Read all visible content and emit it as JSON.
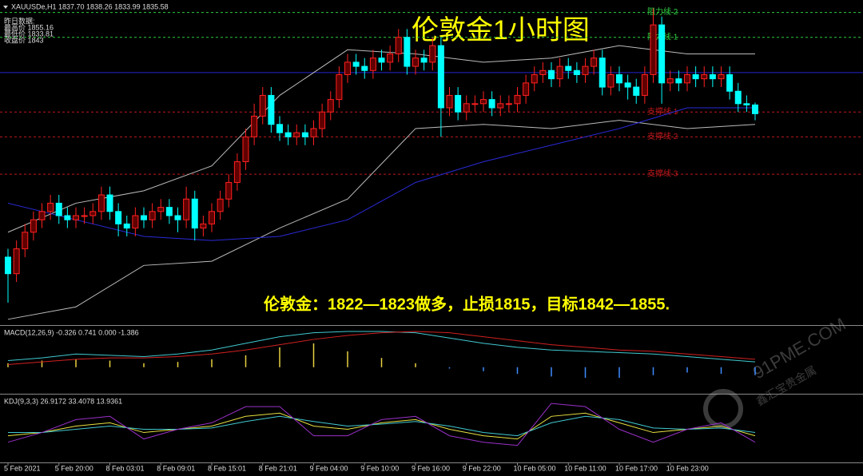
{
  "chart_data": [
    {
      "type": "candlestick",
      "title": "伦敦金1小时图",
      "header": "XAUUSDe,H1  1837.70 1838.26 1833.99 1835.58",
      "info": [
        "昨日数据:",
        "最高价 1855.16",
        "最低价 1833.81",
        "收盘价 1843"
      ],
      "annotation": "伦敦金：1822—1823做多，止损1815，目标1842—1855.",
      "watermark": [
        "91PME.COM",
        "鑫汇宝贵金属"
      ],
      "ylim": [
        1785,
        1863
      ],
      "up_color": "#ff2020",
      "up_fill": "#600000",
      "down_color": "#00ffff",
      "categories": [
        "5 Feb 2021",
        null,
        null,
        null,
        null,
        null,
        "5 Feb 20:00",
        null,
        null,
        null,
        null,
        null,
        "8 Feb 03:01",
        null,
        null,
        null,
        null,
        null,
        "8 Feb 09:01",
        null,
        null,
        null,
        null,
        null,
        "8 Feb 15:01",
        null,
        null,
        null,
        null,
        null,
        "8 Feb 21:01",
        null,
        null,
        null,
        null,
        null,
        "9 Feb 04:00",
        null,
        null,
        null,
        null,
        null,
        "9 Feb 10:00",
        null,
        null,
        null,
        null,
        null,
        "9 Feb 16:00",
        null,
        null,
        null,
        null,
        null,
        "9 Feb 22:00",
        null,
        null,
        null,
        null,
        null,
        "10 Feb 05:00",
        null,
        null,
        null,
        null,
        null,
        "10 Feb 11:00",
        null,
        null,
        null,
        null,
        null,
        "10 Feb 17:00",
        null,
        null,
        null,
        null,
        null,
        "10 Feb 23:00",
        null,
        null,
        null,
        null,
        null,
        null,
        null,
        null,
        null,
        null
      ],
      "open": [
        1801,
        1797,
        1803,
        1807,
        1810,
        1812,
        1814,
        1811,
        1810,
        1811,
        1811,
        1812,
        1816,
        1812,
        1809,
        1808,
        1811,
        1810,
        1812,
        1813,
        1811,
        1810,
        1815,
        1808,
        1809,
        1812,
        1815,
        1819,
        1824,
        1830,
        1835,
        1840,
        1833,
        1831,
        1830,
        1831,
        1830,
        1832,
        1836,
        1839,
        1845,
        1848,
        1847,
        1846,
        1849,
        1848,
        1850,
        1854,
        1847,
        1849,
        1848,
        1852,
        1837,
        1840,
        1836,
        1838,
        1838,
        1839,
        1837,
        1838,
        1838,
        1840,
        1843,
        1845,
        1846,
        1844,
        1847,
        1846,
        1845,
        1847,
        1849,
        1842,
        1845,
        1843,
        1842,
        1840,
        1845,
        1857,
        1843,
        1844,
        1843,
        1845,
        1844,
        1845,
        1844,
        1845,
        1841,
        1838,
        1837.7
      ],
      "high": [
        1803,
        1805,
        1809,
        1812,
        1814,
        1816,
        1816,
        1813,
        1813,
        1813,
        1814,
        1818,
        1818,
        1814,
        1811,
        1813,
        1813,
        1814,
        1815,
        1815,
        1813,
        1818,
        1817,
        1811,
        1814,
        1817,
        1821,
        1826,
        1832,
        1838,
        1842,
        1842,
        1835,
        1833,
        1833,
        1833,
        1834,
        1838,
        1841,
        1847,
        1850,
        1850,
        1849,
        1851,
        1851,
        1852,
        1856,
        1856,
        1851,
        1851,
        1854,
        1854,
        1842,
        1842,
        1840,
        1840,
        1841,
        1841,
        1840,
        1840,
        1842,
        1845,
        1847,
        1848,
        1848,
        1849,
        1849,
        1848,
        1849,
        1851,
        1851,
        1847,
        1847,
        1845,
        1844,
        1847,
        1861,
        1859,
        1846,
        1846,
        1847,
        1847,
        1847,
        1847,
        1847,
        1847,
        1843,
        1840,
        1838.26
      ],
      "low": [
        1790,
        1795,
        1801,
        1805,
        1808,
        1810,
        1809,
        1808,
        1808,
        1809,
        1809,
        1810,
        1810,
        1806,
        1806,
        1806,
        1808,
        1808,
        1810,
        1809,
        1807,
        1808,
        1805,
        1806,
        1807,
        1810,
        1813,
        1817,
        1822,
        1828,
        1833,
        1831,
        1829,
        1828,
        1828,
        1828,
        1828,
        1830,
        1834,
        1837,
        1843,
        1845,
        1844,
        1844,
        1846,
        1846,
        1848,
        1845,
        1845,
        1846,
        1846,
        1830,
        1835,
        1834,
        1834,
        1836,
        1836,
        1835,
        1835,
        1836,
        1836,
        1838,
        1841,
        1843,
        1842,
        1842,
        1844,
        1843,
        1843,
        1845,
        1840,
        1840,
        1841,
        1839,
        1838,
        1838,
        1843,
        1838,
        1841,
        1841,
        1841,
        1842,
        1842,
        1842,
        1842,
        1839,
        1836,
        1836,
        1833.99
      ],
      "close": [
        1797,
        1803,
        1807,
        1810,
        1812,
        1814,
        1811,
        1810,
        1811,
        1811,
        1812,
        1816,
        1812,
        1809,
        1808,
        1811,
        1810,
        1812,
        1813,
        1811,
        1810,
        1815,
        1808,
        1809,
        1812,
        1815,
        1819,
        1824,
        1830,
        1835,
        1840,
        1833,
        1831,
        1830,
        1831,
        1830,
        1832,
        1836,
        1839,
        1845,
        1848,
        1847,
        1846,
        1849,
        1848,
        1850,
        1854,
        1847,
        1849,
        1848,
        1852,
        1837,
        1840,
        1836,
        1838,
        1838,
        1839,
        1837,
        1838,
        1838,
        1840,
        1843,
        1845,
        1846,
        1844,
        1847,
        1846,
        1845,
        1847,
        1849,
        1842,
        1845,
        1843,
        1842,
        1840,
        1845,
        1857,
        1843,
        1844,
        1843,
        1845,
        1844,
        1845,
        1844,
        1845,
        1841,
        1838,
        1837.7,
        1835.58
      ],
      "levels": [
        {
          "label": "阻力线 2",
          "value": 1860,
          "color": "#2ecc40",
          "dash": true
        },
        {
          "label": "阻力线 1",
          "value": 1854,
          "color": "#2ecc40",
          "dash": true
        },
        {
          "value": 1845.5,
          "color": "#2323d0",
          "dash": false
        },
        {
          "label": "支撑线 1",
          "value": 1836,
          "color": "#c0181c",
          "dash": true
        },
        {
          "label": "支撑线 2",
          "value": 1830,
          "color": "#c0181c",
          "dash": true
        },
        {
          "label": "支撑线 3",
          "value": 1821,
          "color": "#c0181c",
          "dash": true
        }
      ],
      "overlays": [
        {
          "color": "#bbbbbb",
          "x": [
            0,
            8,
            16,
            24,
            32,
            40,
            48,
            56,
            64,
            72,
            80,
            88
          ],
          "values": [
            1807,
            1814,
            1817,
            1823,
            1840,
            1851,
            1850,
            1848,
            1849,
            1852,
            1850,
            1850
          ]
        },
        {
          "color": "#bbbbbb",
          "x": [
            0,
            8,
            16,
            24,
            32,
            40,
            48,
            56,
            64,
            72,
            80,
            88
          ],
          "values": [
            1786,
            1789,
            1799,
            1800,
            1808,
            1815,
            1832,
            1833,
            1832,
            1834,
            1832,
            1833
          ]
        },
        {
          "color": "#2a2ad8",
          "x": [
            0,
            8,
            16,
            24,
            32,
            40,
            48,
            56,
            64,
            72,
            80,
            88
          ],
          "values": [
            1814,
            1810,
            1806,
            1805,
            1806,
            1810,
            1819,
            1824,
            1828,
            1832,
            1837,
            1837
          ]
        }
      ]
    },
    {
      "type": "macd",
      "header": "MACD(12,26,9) -0.326 0.741 0.000 -1.386",
      "ylim": [
        -2,
        3
      ],
      "x": [
        0,
        4,
        8,
        12,
        16,
        20,
        24,
        28,
        32,
        36,
        40,
        44,
        48,
        52,
        56,
        60,
        64,
        68,
        72,
        76,
        80,
        84,
        88
      ],
      "histogram": {
        "values": [
          0.3,
          0.5,
          0.6,
          0.5,
          0.3,
          0.4,
          0.6,
          0.9,
          1.5,
          1.8,
          1.2,
          0.7,
          0.3,
          -0.1,
          -0.3,
          -0.5,
          -0.7,
          -0.8,
          -0.8,
          -0.6,
          -0.4,
          -0.5,
          -0.6
        ],
        "up_color": "#e8d040",
        "down_color": "#3d8bff"
      },
      "series": [
        {
          "color": "#40c8d0",
          "values": [
            0.5,
            0.7,
            1.0,
            0.9,
            0.8,
            1.0,
            1.3,
            1.8,
            2.3,
            2.6,
            2.7,
            2.7,
            2.6,
            2.2,
            1.8,
            1.5,
            1.3,
            1.2,
            1.1,
            1.0,
            0.8,
            0.6,
            0.4
          ]
        },
        {
          "color": "#d02020",
          "values": [
            0.2,
            0.4,
            0.6,
            0.7,
            0.7,
            0.8,
            1.0,
            1.3,
            1.7,
            2.1,
            2.4,
            2.6,
            2.7,
            2.6,
            2.3,
            2.0,
            1.7,
            1.5,
            1.3,
            1.2,
            1.0,
            0.8,
            0.6
          ]
        }
      ]
    },
    {
      "type": "kdj",
      "header": "KDJ(9,3,3) 26.9172 33.4078 13.9361",
      "ylim": [
        0,
        100
      ],
      "x": [
        0,
        4,
        8,
        12,
        16,
        20,
        24,
        28,
        32,
        36,
        40,
        44,
        48,
        52,
        56,
        60,
        64,
        68,
        72,
        76,
        80,
        84,
        88
      ],
      "series": [
        {
          "color": "#e8e040",
          "values": [
            40,
            45,
            55,
            60,
            45,
            50,
            55,
            70,
            75,
            55,
            50,
            60,
            65,
            50,
            40,
            35,
            70,
            75,
            60,
            45,
            50,
            55,
            40
          ]
        },
        {
          "color": "#40c8d0",
          "values": [
            45,
            45,
            50,
            55,
            50,
            50,
            52,
            62,
            70,
            62,
            55,
            58,
            62,
            55,
            45,
            40,
            60,
            70,
            65,
            52,
            50,
            52,
            45
          ]
        },
        {
          "color": "#9a30c8",
          "values": [
            30,
            45,
            65,
            70,
            35,
            50,
            60,
            85,
            85,
            40,
            40,
            65,
            70,
            40,
            30,
            25,
            90,
            85,
            50,
            30,
            50,
            60,
            30
          ]
        }
      ]
    }
  ]
}
